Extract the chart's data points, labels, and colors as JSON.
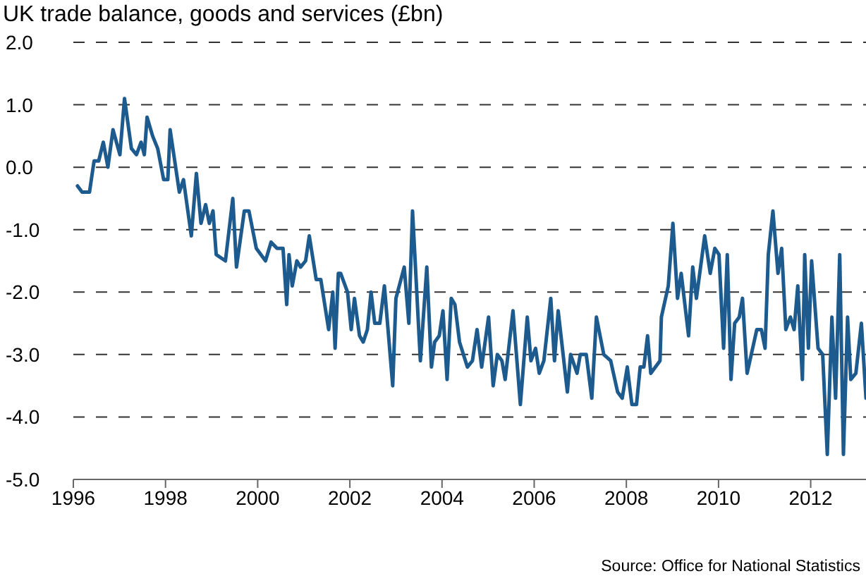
{
  "chart_data": {
    "type": "line",
    "title": "UK trade balance, goods and services (£bn)",
    "annotations": [
      "Source: Office for National Statistics"
    ],
    "series": [
      {
        "color": "#1d5a8e",
        "x": [
          1996.09,
          1996.19,
          1996.35,
          1996.45,
          1996.55,
          1996.65,
          1996.75,
          1996.86,
          1997.01,
          1997.11,
          1997.26,
          1997.37,
          1997.47,
          1997.54,
          1997.6,
          1997.72,
          1997.83,
          1997.96,
          1998.05,
          1998.1,
          1998.3,
          1998.39,
          1998.56,
          1998.67,
          1998.77,
          1998.87,
          1998.95,
          1999.03,
          1999.1,
          1999.3,
          1999.46,
          1999.54,
          1999.71,
          1999.81,
          1999.97,
          2000.17,
          2000.29,
          2000.42,
          2000.55,
          2000.63,
          2000.68,
          2000.75,
          2000.85,
          2000.93,
          2001.04,
          2001.12,
          2001.27,
          2001.37,
          2001.54,
          2001.63,
          2001.68,
          2001.75,
          2001.8,
          2001.95,
          2002.03,
          2002.1,
          2002.21,
          2002.29,
          2002.38,
          2002.46,
          2002.54,
          2002.65,
          2002.75,
          2002.93,
          2003.0,
          2003.18,
          2003.28,
          2003.36,
          2003.53,
          2003.67,
          2003.77,
          2003.84,
          2003.94,
          2004.02,
          2004.11,
          2004.2,
          2004.28,
          2004.38,
          2004.55,
          2004.66,
          2004.76,
          2004.86,
          2005.01,
          2005.11,
          2005.2,
          2005.3,
          2005.37,
          2005.54,
          2005.7,
          2005.85,
          2005.93,
          2006.03,
          2006.11,
          2006.21,
          2006.36,
          2006.44,
          2006.52,
          2006.72,
          2006.79,
          2006.93,
          2007.0,
          2007.13,
          2007.25,
          2007.35,
          2007.51,
          2007.66,
          2007.81,
          2007.91,
          2008.02,
          2008.12,
          2008.22,
          2008.3,
          2008.38,
          2008.46,
          2008.53,
          2008.73,
          2008.76,
          2008.91,
          2009.01,
          2009.11,
          2009.19,
          2009.35,
          2009.44,
          2009.52,
          2009.7,
          2009.82,
          2009.92,
          2010.01,
          2010.11,
          2010.19,
          2010.27,
          2010.35,
          2010.45,
          2010.52,
          2010.62,
          2010.83,
          2010.93,
          2011.01,
          2011.08,
          2011.18,
          2011.29,
          2011.37,
          2011.46,
          2011.56,
          2011.64,
          2011.72,
          2011.82,
          2011.87,
          2011.95,
          2012.02,
          2012.16,
          2012.26,
          2012.36,
          2012.46,
          2012.54,
          2012.63,
          2012.71,
          2012.8,
          2012.87,
          2012.98,
          2013.1,
          2013.2
        ],
        "values": [
          -0.3,
          -0.4,
          -0.4,
          0.1,
          0.1,
          0.4,
          0.0,
          0.6,
          0.2,
          1.1,
          0.3,
          0.2,
          0.4,
          0.2,
          0.8,
          0.5,
          0.3,
          -0.2,
          -0.2,
          0.6,
          -0.4,
          -0.2,
          -1.1,
          -0.1,
          -0.9,
          -0.6,
          -0.9,
          -0.7,
          -1.4,
          -1.5,
          -0.5,
          -1.6,
          -0.7,
          -0.7,
          -1.3,
          -1.5,
          -1.2,
          -1.3,
          -1.3,
          -2.2,
          -1.4,
          -1.9,
          -1.5,
          -1.6,
          -1.5,
          -1.1,
          -1.8,
          -1.8,
          -2.6,
          -2.0,
          -2.9,
          -1.7,
          -1.7,
          -2.0,
          -2.6,
          -2.1,
          -2.7,
          -2.8,
          -2.6,
          -2.0,
          -2.5,
          -2.5,
          -1.9,
          -3.5,
          -2.1,
          -1.6,
          -2.5,
          -0.7,
          -3.1,
          -1.6,
          -3.2,
          -2.8,
          -2.7,
          -2.3,
          -3.4,
          -2.1,
          -2.2,
          -2.8,
          -3.2,
          -3.1,
          -2.6,
          -3.2,
          -2.4,
          -3.5,
          -3.0,
          -3.1,
          -3.4,
          -2.3,
          -3.8,
          -2.4,
          -3.1,
          -2.9,
          -3.3,
          -3.1,
          -2.1,
          -3.1,
          -2.3,
          -3.6,
          -3.0,
          -3.3,
          -3.0,
          -3.0,
          -3.7,
          -2.4,
          -3.0,
          -3.1,
          -3.6,
          -3.7,
          -3.2,
          -3.8,
          -3.8,
          -3.2,
          -3.2,
          -2.7,
          -3.3,
          -3.1,
          -2.4,
          -1.9,
          -0.9,
          -2.1,
          -1.7,
          -2.7,
          -1.6,
          -2.1,
          -1.1,
          -1.7,
          -1.3,
          -1.4,
          -2.9,
          -1.4,
          -3.4,
          -2.5,
          -2.4,
          -2.1,
          -3.3,
          -2.6,
          -2.6,
          -2.9,
          -1.4,
          -0.7,
          -1.7,
          -1.3,
          -2.6,
          -2.4,
          -2.6,
          -1.9,
          -3.4,
          -1.4,
          -2.9,
          -1.5,
          -2.9,
          -3.0,
          -4.6,
          -2.4,
          -3.7,
          -1.4,
          -4.6,
          -2.4,
          -3.4,
          -3.3,
          -2.5,
          -3.7
        ]
      }
    ],
    "xlim": [
      1996,
      2013.2
    ],
    "xticks": [
      1996,
      1998,
      2000,
      2002,
      2004,
      2006,
      2008,
      2010,
      2012
    ],
    "ylim": [
      -5,
      2
    ],
    "yticks": [
      {
        "value": -5,
        "label": "-5.0"
      },
      {
        "value": -4,
        "label": "-4.0"
      },
      {
        "value": -3,
        "label": "-3.0"
      },
      {
        "value": -2,
        "label": "-2.0"
      },
      {
        "value": -1,
        "label": "-1.0"
      },
      {
        "value": 0,
        "label": "0.0"
      },
      {
        "value": 1,
        "label": "1.0"
      },
      {
        "value": 2,
        "label": "2.0"
      }
    ],
    "grid": "y",
    "marker": "none",
    "line_style": "solid"
  }
}
